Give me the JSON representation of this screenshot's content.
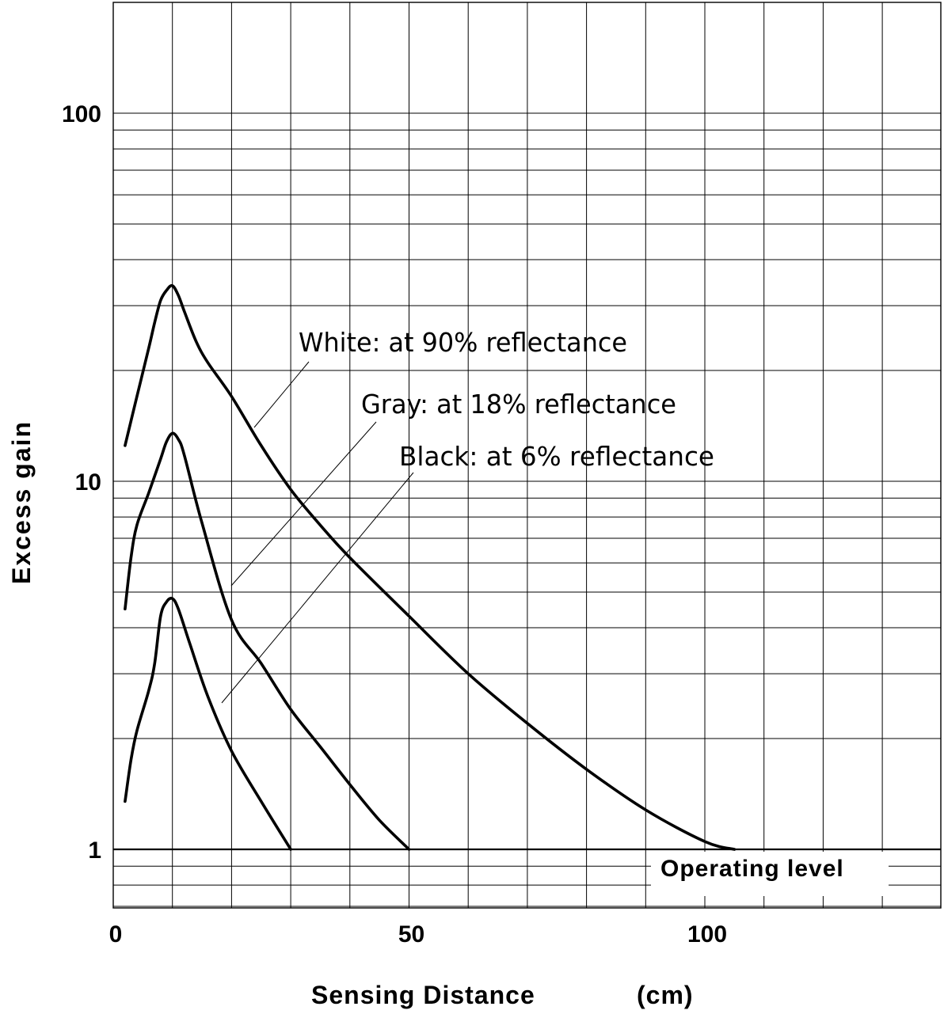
{
  "chart_data": {
    "type": "line",
    "xlabel": "Sensing Distance",
    "xunit": "(cm)",
    "ylabel": "Excess gain",
    "yscale": "log",
    "xlim": [
      0,
      140
    ],
    "ylim": [
      0.6,
      200
    ],
    "grid": true,
    "x_ticks": [
      {
        "value": 0,
        "label": "0"
      },
      {
        "value": 50,
        "label": "50"
      },
      {
        "value": 100,
        "label": "100"
      }
    ],
    "y_ticks": [
      {
        "value": 1,
        "label": "1"
      },
      {
        "value": 10,
        "label": "10"
      },
      {
        "value": 100,
        "label": "100"
      }
    ],
    "series": [
      {
        "name": "White: at 90% reflectance",
        "x": [
          2,
          4,
          6,
          7,
          8,
          9,
          10,
          11,
          12,
          14,
          16,
          20,
          25,
          30,
          35,
          40,
          50,
          60,
          70,
          80,
          90,
          100,
          105
        ],
        "y": [
          12.5,
          17,
          23,
          27,
          31,
          33,
          34,
          32,
          29,
          24,
          21,
          17,
          12.5,
          9.5,
          7.6,
          6.2,
          4.3,
          3.0,
          2.2,
          1.65,
          1.28,
          1.05,
          1.0
        ]
      },
      {
        "name": "Gray: at 18% reflectance",
        "x": [
          2,
          3,
          4,
          6,
          8,
          9,
          10,
          11,
          12,
          15,
          20,
          25,
          30,
          35,
          40,
          45,
          50
        ],
        "y": [
          4.5,
          6.2,
          7.6,
          9.3,
          11.5,
          12.8,
          13.5,
          13,
          11.8,
          7.7,
          4.2,
          3.2,
          2.4,
          1.9,
          1.5,
          1.2,
          1.0
        ]
      },
      {
        "name": "Black: at 6% reflectance",
        "x": [
          2,
          3,
          4,
          6,
          7,
          8,
          9,
          10,
          11,
          13,
          16,
          20,
          25,
          30
        ],
        "y": [
          1.35,
          1.75,
          2.1,
          2.7,
          3.2,
          4.3,
          4.7,
          4.8,
          4.5,
          3.6,
          2.6,
          1.85,
          1.35,
          1.0
        ]
      }
    ],
    "operating_level": {
      "value": 1,
      "label": "Operating level"
    }
  }
}
